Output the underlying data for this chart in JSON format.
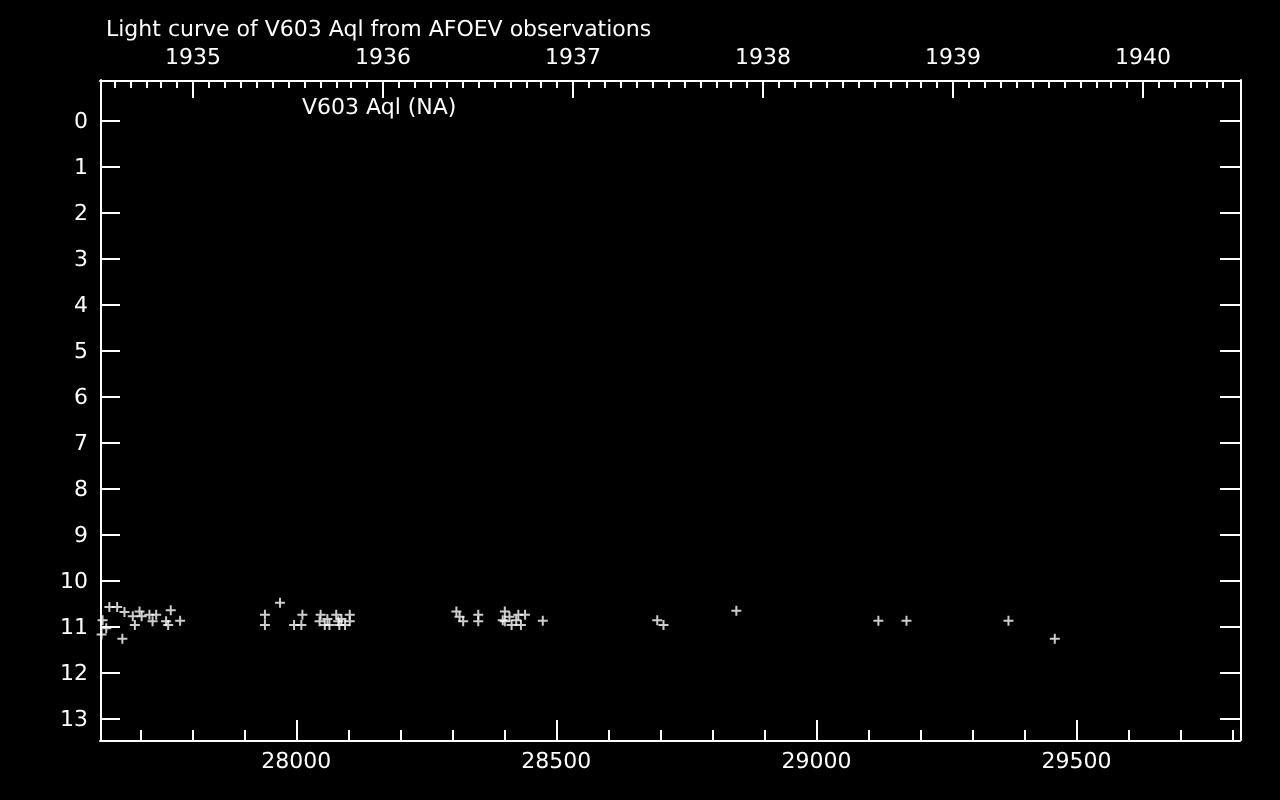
{
  "chart_data": {
    "type": "scatter",
    "title": "Light curve of V603 Aql from AFOEV observations",
    "annotations": [
      "V603 Aql (NA)"
    ],
    "x": [
      27626,
      27628,
      27635,
      27641,
      27656,
      27666,
      27670,
      27686,
      27690,
      27699,
      27703,
      27718,
      27724,
      27731,
      27750,
      27754,
      27759,
      27777,
      27940,
      27940,
      27969,
      27996,
      28010,
      28012,
      28045,
      28047,
      28055,
      28060,
      28064,
      28077,
      28081,
      28083,
      28087,
      28094,
      28103,
      28103,
      28308,
      28314,
      28321,
      28350,
      28350,
      28397,
      28401,
      28401,
      28410,
      28414,
      28423,
      28427,
      28432,
      28440,
      28474,
      28694,
      28706,
      28846,
      29119,
      29173,
      29369,
      29458
    ],
    "values": [
      11.17,
      10.86,
      11.03,
      10.57,
      10.57,
      11.26,
      10.68,
      10.77,
      10.96,
      10.67,
      10.77,
      10.74,
      10.88,
      10.74,
      10.88,
      10.96,
      10.64,
      10.87,
      10.74,
      10.96,
      10.48,
      10.96,
      10.96,
      10.74,
      10.88,
      10.74,
      10.96,
      10.83,
      10.96,
      10.74,
      10.88,
      10.96,
      10.83,
      10.96,
      10.74,
      10.88,
      10.67,
      10.78,
      10.88,
      10.74,
      10.88,
      10.86,
      10.67,
      10.88,
      10.78,
      10.96,
      10.86,
      10.74,
      10.96,
      10.74,
      10.87,
      10.86,
      10.96,
      10.65,
      10.87,
      10.87,
      10.87,
      11.26
    ],
    "color": "#ffffff",
    "marker": "cross",
    "xlim": [
      27623,
      29814
    ],
    "xticks": [
      {
        "value": 27700,
        "label": null
      },
      {
        "value": 27800,
        "label": null
      },
      {
        "value": 27900,
        "label": null
      },
      28000,
      {
        "value": 28100,
        "label": null
      },
      {
        "value": 28200,
        "label": null
      },
      {
        "value": 28300,
        "label": null
      },
      {
        "value": 28400,
        "label": null
      },
      28500,
      {
        "value": 28600,
        "label": null
      },
      {
        "value": 28700,
        "label": null
      },
      {
        "value": 28800,
        "label": null
      },
      {
        "value": 28900,
        "label": null
      },
      29000,
      {
        "value": 29100,
        "label": null
      },
      {
        "value": 29200,
        "label": null
      },
      {
        "value": 29300,
        "label": null
      },
      {
        "value": 29400,
        "label": null
      },
      29500,
      {
        "value": 29600,
        "label": null
      },
      {
        "value": 29700,
        "label": null
      },
      {
        "value": 29800,
        "label": null
      }
    ],
    "ylim": [
      13.46,
      -0.88
    ],
    "yticks": [
      0,
      1,
      2,
      3,
      4,
      5,
      6,
      7,
      8,
      9,
      10,
      11,
      12,
      13
    ],
    "x2lim": [
      1934.51,
      1940.51
    ],
    "x2ticks": [
      {
        "value": 1934.583,
        "label": null
      },
      {
        "value": 1934.667,
        "label": null
      },
      {
        "value": 1934.75,
        "label": null
      },
      {
        "value": 1934.833,
        "label": null
      },
      {
        "value": 1934.917,
        "label": null
      },
      1935,
      {
        "value": 1935.083,
        "label": null
      },
      {
        "value": 1935.167,
        "label": null
      },
      {
        "value": 1935.25,
        "label": null
      },
      {
        "value": 1935.333,
        "label": null
      },
      {
        "value": 1935.417,
        "label": null
      },
      {
        "value": 1935.5,
        "label": null
      },
      {
        "value": 1935.583,
        "label": null
      },
      {
        "value": 1935.667,
        "label": null
      },
      {
        "value": 1935.75,
        "label": null
      },
      {
        "value": 1935.833,
        "label": null
      },
      {
        "value": 1935.917,
        "label": null
      },
      1936,
      {
        "value": 1936.083,
        "label": null
      },
      {
        "value": 1936.167,
        "label": null
      },
      {
        "value": 1936.25,
        "label": null
      },
      {
        "value": 1936.333,
        "label": null
      },
      {
        "value": 1936.417,
        "label": null
      },
      {
        "value": 1936.5,
        "label": null
      },
      {
        "value": 1936.583,
        "label": null
      },
      {
        "value": 1936.667,
        "label": null
      },
      {
        "value": 1936.75,
        "label": null
      },
      {
        "value": 1936.833,
        "label": null
      },
      {
        "value": 1936.917,
        "label": null
      },
      1937,
      {
        "value": 1937.083,
        "label": null
      },
      {
        "value": 1937.167,
        "label": null
      },
      {
        "value": 1937.25,
        "label": null
      },
      {
        "value": 1937.333,
        "label": null
      },
      {
        "value": 1937.417,
        "label": null
      },
      {
        "value": 1937.5,
        "label": null
      },
      {
        "value": 1937.583,
        "label": null
      },
      {
        "value": 1937.667,
        "label": null
      },
      {
        "value": 1937.75,
        "label": null
      },
      {
        "value": 1937.833,
        "label": null
      },
      {
        "value": 1937.917,
        "label": null
      },
      1938,
      {
        "value": 1938.083,
        "label": null
      },
      {
        "value": 1938.167,
        "label": null
      },
      {
        "value": 1938.25,
        "label": null
      },
      {
        "value": 1938.333,
        "label": null
      },
      {
        "value": 1938.417,
        "label": null
      },
      {
        "value": 1938.5,
        "label": null
      },
      {
        "value": 1938.583,
        "label": null
      },
      {
        "value": 1938.667,
        "label": null
      },
      {
        "value": 1938.75,
        "label": null
      },
      {
        "value": 1938.833,
        "label": null
      },
      {
        "value": 1938.917,
        "label": null
      },
      1939,
      {
        "value": 1939.083,
        "label": null
      },
      {
        "value": 1939.167,
        "label": null
      },
      {
        "value": 1939.25,
        "label": null
      },
      {
        "value": 1939.333,
        "label": null
      },
      {
        "value": 1939.417,
        "label": null
      },
      {
        "value": 1939.5,
        "label": null
      },
      {
        "value": 1939.583,
        "label": null
      },
      {
        "value": 1939.667,
        "label": null
      },
      {
        "value": 1939.75,
        "label": null
      },
      {
        "value": 1939.833,
        "label": null
      },
      {
        "value": 1939.917,
        "label": null
      },
      1940,
      {
        "value": 1940.083,
        "label": null
      },
      {
        "value": 1940.167,
        "label": null
      },
      {
        "value": 1940.25,
        "label": null
      },
      {
        "value": 1940.333,
        "label": null
      },
      {
        "value": 1940.417,
        "label": null
      }
    ]
  }
}
